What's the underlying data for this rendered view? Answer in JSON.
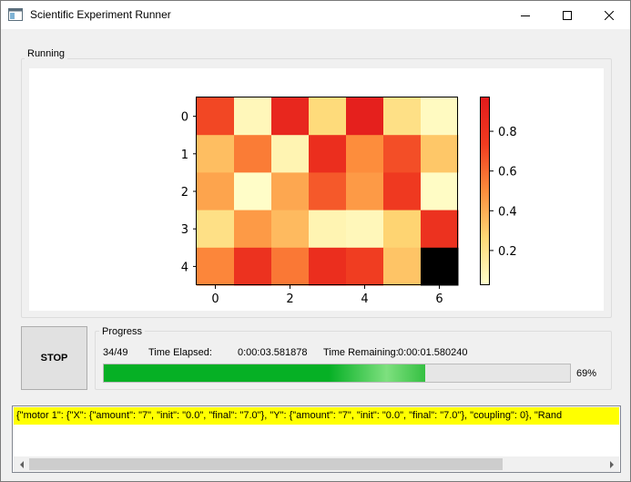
{
  "window": {
    "title": "Scientific Experiment Runner",
    "icon": "app-window-icon",
    "controls": [
      "minimize-icon",
      "maximize-icon",
      "close-icon"
    ]
  },
  "running_group": {
    "label": "Running"
  },
  "chart_data": {
    "type": "heatmap",
    "colormap": "YlOrRd",
    "rows": [
      0,
      1,
      2,
      3,
      4
    ],
    "cols": [
      0,
      1,
      2,
      3,
      4,
      5,
      6
    ],
    "x_ticks": [
      "0",
      "2",
      "4",
      "6"
    ],
    "y_ticks": [
      "0",
      "1",
      "2",
      "3",
      "4"
    ],
    "values": [
      [
        0.7,
        0.08,
        0.88,
        0.25,
        0.93,
        0.22,
        0.06
      ],
      [
        0.35,
        0.55,
        0.1,
        0.83,
        0.5,
        0.68,
        0.32
      ],
      [
        0.43,
        0.04,
        0.42,
        0.65,
        0.46,
        0.75,
        0.05
      ],
      [
        0.22,
        0.46,
        0.36,
        0.1,
        0.08,
        0.28,
        0.8
      ],
      [
        0.52,
        0.8,
        0.56,
        0.83,
        0.73,
        0.33,
        null
      ]
    ],
    "missing_color": "#000000",
    "colorbar": {
      "range": [
        0.03,
        0.97
      ],
      "ticks": [
        "0.2",
        "0.4",
        "0.6",
        "0.8"
      ]
    }
  },
  "controls": {
    "stop_label": "STOP"
  },
  "progress": {
    "label": "Progress",
    "count": "34/49",
    "elapsed_label": "Time Elapsed:",
    "elapsed": "0:00:03.581878",
    "remaining_label": "Time Remaining:",
    "remaining": "0:00:01.580240",
    "percent": 69,
    "percent_text": "69%",
    "fill_color": "#06b025"
  },
  "log": {
    "line": "{\"motor 1\": {\"X\": {\"amount\": \"7\", \"init\": \"0.0\", \"final\": \"7.0\"}, \"Y\": {\"amount\": \"7\", \"init\": \"0.0\", \"final\": \"7.0\"}, \"coupling\": 0}, \"Rand",
    "highlight_color": "#ffff00"
  }
}
